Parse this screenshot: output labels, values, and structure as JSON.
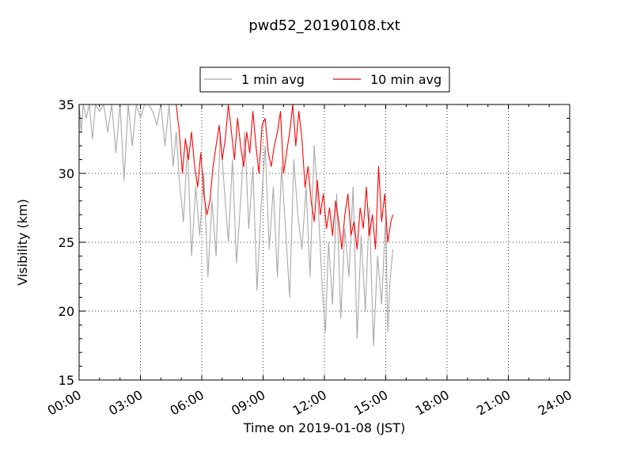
{
  "chart_data": {
    "type": "line",
    "title": "pwd52_20190108.txt",
    "xlabel": "Time on 2019-01-08 (JST)",
    "ylabel": "Visibility (km)",
    "x_unit": "hours",
    "xlim": [
      0,
      24
    ],
    "ylim": [
      15,
      35
    ],
    "x_ticks": [
      0,
      3,
      6,
      9,
      12,
      15,
      18,
      21,
      24
    ],
    "x_tick_labels": [
      "00:00",
      "03:00",
      "06:00",
      "09:00",
      "12:00",
      "15:00",
      "18:00",
      "21:00",
      "24:00"
    ],
    "y_ticks": [
      15,
      20,
      25,
      30,
      35
    ],
    "y_tick_labels": [
      "15",
      "20",
      "25",
      "30",
      "35"
    ],
    "grid": true,
    "legend_position": "top-center (outside axes)",
    "colors": {
      "1 min avg": "#a9a9a9",
      "10 min avg": "#ff0000"
    },
    "series": [
      {
        "name": "1 min avg",
        "x": [
          0,
          0.1,
          0.2,
          0.35,
          0.5,
          0.65,
          0.8,
          1.0,
          1.2,
          1.4,
          1.6,
          1.8,
          2.0,
          2.2,
          2.4,
          2.6,
          2.8,
          3.0,
          3.2,
          3.4,
          3.6,
          3.8,
          4.0,
          4.2,
          4.4,
          4.6,
          4.75,
          4.9,
          5.1,
          5.3,
          5.5,
          5.7,
          5.9,
          6.1,
          6.3,
          6.5,
          6.7,
          6.9,
          7.1,
          7.3,
          7.5,
          7.7,
          7.9,
          8.1,
          8.3,
          8.5,
          8.7,
          8.9,
          9.1,
          9.3,
          9.5,
          9.7,
          9.9,
          10.1,
          10.3,
          10.5,
          10.7,
          10.9,
          11.1,
          11.3,
          11.5,
          11.7,
          11.9,
          12.05,
          12.2,
          12.4,
          12.6,
          12.8,
          13.0,
          13.2,
          13.4,
          13.6,
          13.8,
          14.0,
          14.2,
          14.4,
          14.6,
          14.8,
          15.0,
          15.1,
          15.2,
          15.35
        ],
        "values": [
          35,
          33,
          35,
          34,
          35,
          32.5,
          35,
          34.5,
          35,
          33,
          35,
          31.5,
          35,
          29.5,
          35,
          32,
          35,
          34,
          35,
          35,
          34.5,
          33.5,
          35,
          32,
          35,
          30.5,
          33,
          29.5,
          26.5,
          32,
          24,
          29,
          25.5,
          30,
          22.5,
          28,
          24,
          33,
          29,
          25,
          31,
          23.5,
          28,
          33,
          26,
          30.5,
          21.5,
          27.5,
          32,
          24.5,
          29,
          22.5,
          30.5,
          26,
          21,
          31,
          27,
          24.5,
          29,
          22.5,
          32,
          27.5,
          21.5,
          18.5,
          25,
          20.5,
          28.5,
          19.5,
          26,
          22.5,
          29,
          18,
          25.5,
          20,
          27.5,
          17.5,
          24,
          20.5,
          27,
          18.5,
          22,
          24.5
        ]
      },
      {
        "name": "10 min avg",
        "x": [
          4.75,
          4.9,
          5.05,
          5.2,
          5.35,
          5.5,
          5.65,
          5.8,
          5.95,
          6.1,
          6.25,
          6.4,
          6.55,
          6.7,
          6.85,
          7.0,
          7.15,
          7.3,
          7.45,
          7.6,
          7.75,
          7.9,
          8.05,
          8.2,
          8.35,
          8.5,
          8.65,
          8.8,
          8.95,
          9.1,
          9.25,
          9.4,
          9.55,
          9.7,
          9.85,
          10.0,
          10.15,
          10.3,
          10.45,
          10.6,
          10.75,
          10.9,
          11.05,
          11.2,
          11.35,
          11.5,
          11.65,
          11.8,
          11.95,
          12.1,
          12.25,
          12.4,
          12.55,
          12.7,
          12.85,
          13.0,
          13.15,
          13.3,
          13.45,
          13.6,
          13.75,
          13.9,
          14.05,
          14.2,
          14.35,
          14.5,
          14.65,
          14.8,
          14.95,
          15.1,
          15.25,
          15.35
        ],
        "values": [
          35,
          33,
          30,
          32.5,
          31,
          33,
          30.5,
          29,
          31.5,
          28.5,
          27,
          28,
          30.5,
          32,
          33.5,
          31,
          32.5,
          35,
          33,
          31,
          34,
          32,
          30.5,
          33,
          31.5,
          34.5,
          32,
          30,
          33.5,
          34,
          31.5,
          30.5,
          32,
          33,
          34.5,
          30,
          31.5,
          33,
          35,
          32,
          34.5,
          32.5,
          29,
          30.5,
          28,
          26.5,
          29.5,
          27,
          28.5,
          26,
          27.5,
          25.5,
          28,
          26.5,
          24.5,
          27,
          28.5,
          25.5,
          26.5,
          24.5,
          27.5,
          26,
          29,
          25.5,
          27,
          24.5,
          30.5,
          26.5,
          28.5,
          25,
          26.5,
          27
        ]
      }
    ]
  }
}
